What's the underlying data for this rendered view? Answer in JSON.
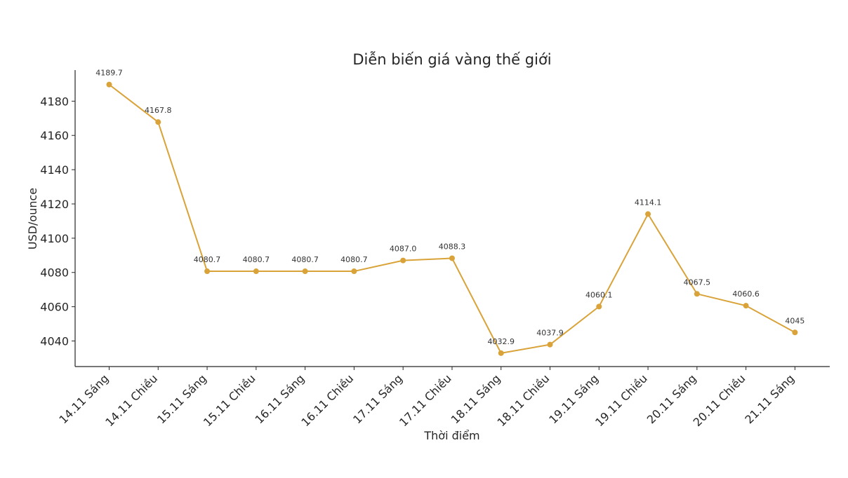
{
  "chart_data": {
    "type": "line",
    "title": "Diễn biến giá vàng thế giới",
    "xlabel": "Thời điểm",
    "ylabel": "USD/ounce",
    "categories": [
      "14.11 Sáng",
      "14.11 Chiều",
      "15.11 Sáng",
      "15.11 Chiều",
      "16.11 Sáng",
      "16.11 Chiều",
      "17.11 Sáng",
      "17.11 Chiều",
      "18.11 Sáng",
      "18.11 Chiều",
      "19.11 Sáng",
      "19.11 Chiều",
      "20.11 Sáng",
      "20.11 Chiều",
      "21.11 Sáng"
    ],
    "values": [
      4189.7,
      4167.8,
      4080.7,
      4080.7,
      4080.7,
      4080.7,
      4087.0,
      4088.3,
      4032.9,
      4037.9,
      4060.1,
      4114.1,
      4067.5,
      4060.6,
      4045
    ],
    "data_labels": [
      "4189.7",
      "4167.8",
      "4080.7",
      "4080.7",
      "4080.7",
      "4080.7",
      "4087.0",
      "4088.3",
      "4032.9",
      "4037.9",
      "4060.1",
      "4114.1",
      "4067.5",
      "4060.6",
      "4045"
    ],
    "yticks": [
      4040,
      4060,
      4080,
      4100,
      4120,
      4140,
      4160,
      4180
    ],
    "ylim": [
      4025.5,
      4197
    ],
    "grid": false,
    "legend": "none",
    "color": "#d9a339"
  }
}
